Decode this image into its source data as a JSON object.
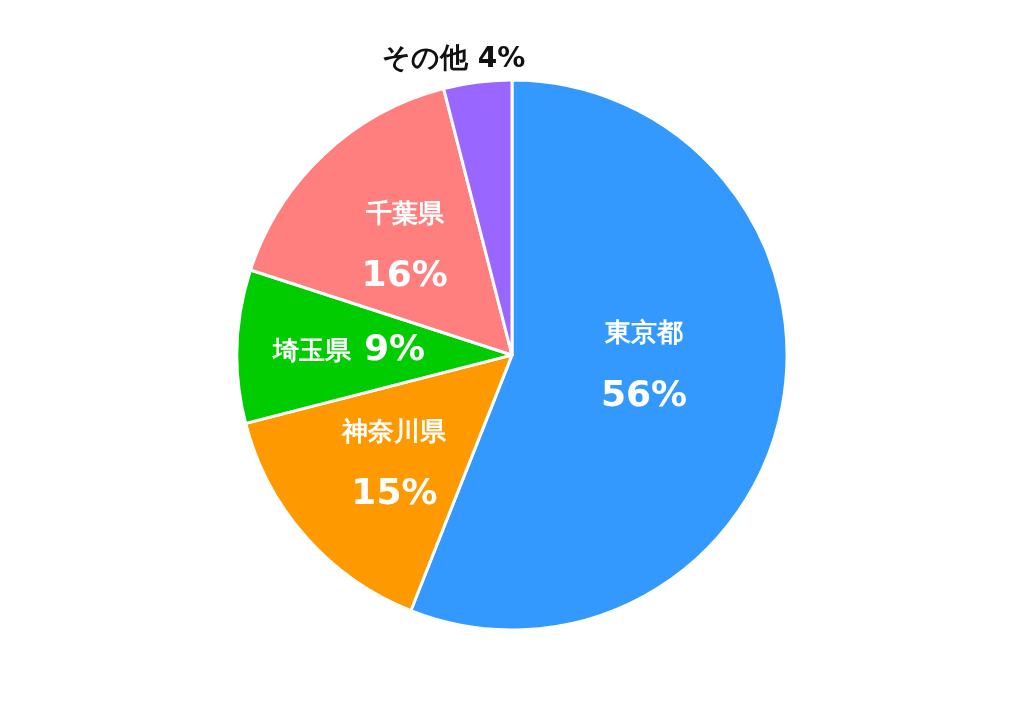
{
  "chart_data": {
    "type": "pie",
    "categories": [
      "東京都",
      "神奈川県",
      "埼玉県",
      "千葉県",
      "その他"
    ],
    "values": [
      56,
      15,
      9,
      16,
      4
    ],
    "value_labels": [
      "56%",
      "15%",
      "9%",
      "16%",
      "4%"
    ],
    "colors": [
      "#3399ff",
      "#ff9900",
      "#00cc00",
      "#ff7f7f",
      "#9966ff"
    ]
  }
}
